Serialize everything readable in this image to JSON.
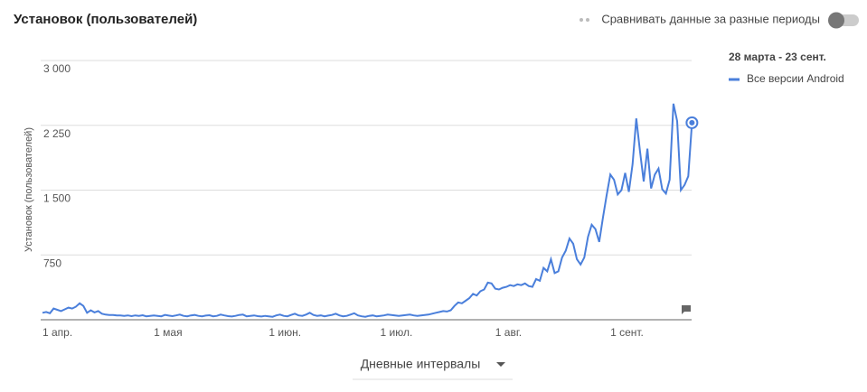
{
  "header": {
    "title": "Установок (пользователей)",
    "compare": "Сравнивать данные за разные периоды"
  },
  "controls": {
    "interval": "Дневные интервалы"
  },
  "chart_data": {
    "type": "line",
    "y_label": "Установок (пользователей)",
    "legend_title": "28 марта - 23 сент.",
    "ylim": [
      0,
      3000
    ],
    "yticks": [
      {
        "value": 750,
        "label": "750"
      },
      {
        "value": 1500,
        "label": "1 500"
      },
      {
        "value": 2250,
        "label": "2 250"
      },
      {
        "value": 3000,
        "label": "3 000"
      }
    ],
    "grid": true,
    "categories": [
      "1 апр.",
      null,
      null,
      null,
      null,
      null,
      null,
      null,
      null,
      null,
      null,
      null,
      null,
      null,
      null,
      null,
      null,
      null,
      null,
      null,
      null,
      null,
      null,
      null,
      null,
      null,
      null,
      null,
      null,
      null,
      "1 мая",
      null,
      null,
      null,
      null,
      null,
      null,
      null,
      null,
      null,
      null,
      null,
      null,
      null,
      null,
      null,
      null,
      null,
      null,
      null,
      null,
      null,
      null,
      null,
      null,
      null,
      null,
      null,
      null,
      null,
      null,
      "1 июн.",
      null,
      null,
      null,
      null,
      null,
      null,
      null,
      null,
      null,
      null,
      null,
      null,
      null,
      null,
      null,
      null,
      null,
      null,
      null,
      null,
      null,
      null,
      null,
      null,
      null,
      null,
      null,
      null,
      null,
      "1 июл.",
      null,
      null,
      null,
      null,
      null,
      null,
      null,
      null,
      null,
      null,
      null,
      null,
      null,
      null,
      null,
      null,
      null,
      null,
      null,
      null,
      null,
      null,
      null,
      null,
      null,
      null,
      null,
      null,
      null,
      null,
      "1 авг.",
      null,
      null,
      null,
      null,
      null,
      null,
      null,
      null,
      null,
      null,
      null,
      null,
      null,
      null,
      null,
      null,
      null,
      null,
      null,
      null,
      null,
      null,
      null,
      null,
      null,
      null,
      null,
      null,
      null,
      null,
      "1 сент.",
      null,
      null,
      null,
      null,
      null,
      null,
      null,
      null,
      null,
      null,
      null,
      null,
      null,
      null,
      null,
      null,
      null,
      null,
      null,
      null,
      null,
      null
    ],
    "series": [
      {
        "name": "Все версии Android",
        "color": "#4a7fdb",
        "values": [
          80,
          90,
          75,
          130,
          115,
          100,
          120,
          140,
          130,
          150,
          190,
          160,
          80,
          110,
          85,
          100,
          70,
          60,
          55,
          55,
          50,
          50,
          45,
          50,
          42,
          50,
          45,
          52,
          40,
          45,
          50,
          45,
          40,
          55,
          48,
          42,
          50,
          60,
          45,
          40,
          50,
          55,
          45,
          40,
          48,
          52,
          40,
          45,
          60,
          50,
          42,
          38,
          45,
          55,
          60,
          40,
          45,
          50,
          42,
          38,
          45,
          40,
          35,
          50,
          60,
          45,
          40,
          55,
          70,
          50,
          45,
          60,
          80,
          55,
          45,
          50,
          40,
          48,
          55,
          70,
          50,
          40,
          45,
          60,
          75,
          50,
          40,
          35,
          45,
          50,
          40,
          45,
          50,
          60,
          55,
          50,
          45,
          50,
          55,
          60,
          50,
          45,
          50,
          55,
          60,
          70,
          80,
          90,
          100,
          95,
          110,
          160,
          200,
          190,
          220,
          250,
          300,
          280,
          330,
          350,
          430,
          420,
          360,
          350,
          370,
          380,
          400,
          390,
          410,
          400,
          420,
          390,
          380,
          470,
          450,
          600,
          560,
          700,
          540,
          560,
          720,
          800,
          940,
          880,
          700,
          640,
          720,
          960,
          1100,
          1050,
          900,
          1180,
          1440,
          1680,
          1620,
          1450,
          1500,
          1700,
          1480,
          1800,
          2330,
          1950,
          1600,
          1980,
          1520,
          1680,
          1750,
          1510,
          1460,
          1620,
          2500,
          2300,
          1500,
          1560,
          1660,
          2280
        ]
      }
    ]
  }
}
